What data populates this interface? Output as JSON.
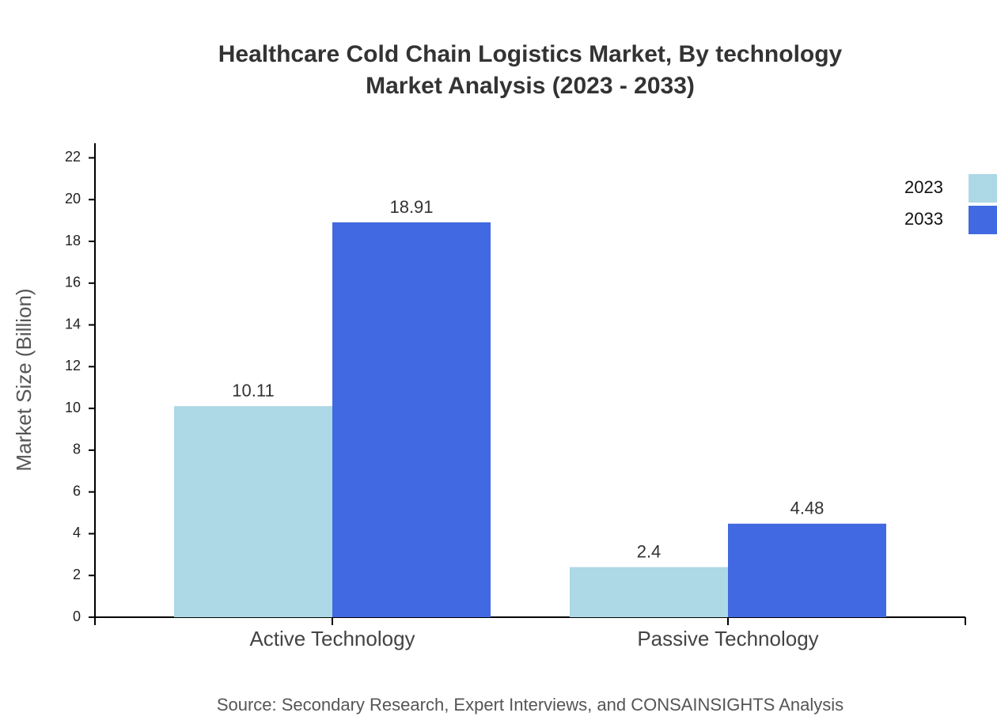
{
  "chart_data": {
    "type": "bar",
    "title": "Healthcare Cold Chain Logistics Market, By technology",
    "subtitle": "Market Analysis (2023 - 2033)",
    "y_label": "Market Size (Billion)",
    "source": "Source: Secondary Research, Expert Interviews, and CONSAINSIGHTS Analysis",
    "categories": [
      "Active Technology",
      "Passive Technology"
    ],
    "series": [
      {
        "name": "2023",
        "color": "#add8e6",
        "values": [
          10.11,
          2.4
        ]
      },
      {
        "name": "2033",
        "color": "#4169e1",
        "values": [
          18.91,
          4.48
        ]
      }
    ],
    "ylim": [
      0,
      22.7
    ],
    "yticks": [
      0,
      2,
      4,
      6,
      8,
      10,
      12,
      14,
      16,
      18,
      20,
      22
    ],
    "grid": false,
    "legend": "top-right"
  }
}
